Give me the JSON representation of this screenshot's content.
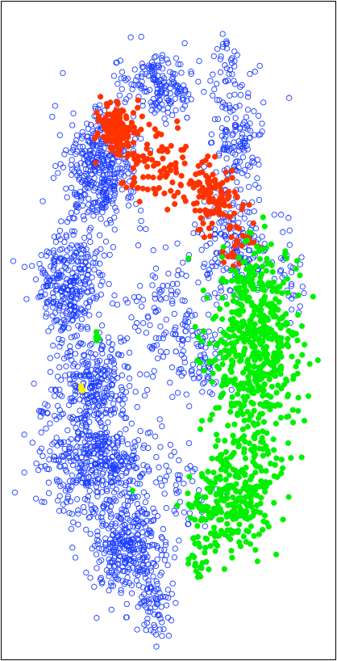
{
  "chart_data": {
    "type": "scatter",
    "title": "",
    "xlabel": "",
    "ylabel": "",
    "xlim": [
      0,
      100
    ],
    "ylim": [
      0,
      100
    ],
    "grid": false,
    "legend": "none",
    "series": [
      {
        "marker": "hollow-circle",
        "color": "#1a3cff",
        "clusters": [
          {
            "cx": 48,
            "cy": 87,
            "sx": 6,
            "sy": 2.5,
            "n": 180
          },
          {
            "cx": 29,
            "cy": 75,
            "sx": 5,
            "sy": 4,
            "n": 380
          },
          {
            "cx": 20,
            "cy": 57,
            "sx": 5,
            "sy": 4.5,
            "n": 320
          },
          {
            "cx": 28,
            "cy": 42,
            "sx": 5,
            "sy": 3.5,
            "n": 250
          },
          {
            "cx": 28,
            "cy": 30,
            "sx": 8,
            "sy": 4,
            "n": 430
          },
          {
            "cx": 38,
            "cy": 17,
            "sx": 6,
            "sy": 4,
            "n": 330
          },
          {
            "cx": 46,
            "cy": 9,
            "sx": 3,
            "sy": 2.5,
            "n": 70
          },
          {
            "cx": 50,
            "cy": 53,
            "sx": 8,
            "sy": 5,
            "n": 130
          },
          {
            "cx": 70,
            "cy": 62,
            "sx": 5,
            "sy": 4,
            "n": 160
          },
          {
            "cx": 71,
            "cy": 79,
            "sx": 4,
            "sy": 5,
            "n": 150
          },
          {
            "cx": 60,
            "cy": 45,
            "sx": 5,
            "sy": 3,
            "n": 70
          },
          {
            "cx": 55,
            "cy": 26,
            "sx": 4,
            "sy": 3,
            "n": 40
          },
          {
            "cx": 68,
            "cy": 91,
            "sx": 1.5,
            "sy": 2,
            "n": 25
          },
          {
            "cx": 86,
            "cy": 58,
            "sx": 2,
            "sy": 4,
            "n": 30
          },
          {
            "cx": 12,
            "cy": 38,
            "sx": 2,
            "sy": 1,
            "n": 12
          }
        ]
      },
      {
        "marker": "filled-circle",
        "color": "#ff3300",
        "clusters": [
          {
            "cx": 35,
            "cy": 81,
            "sx": 3,
            "sy": 2,
            "n": 130
          },
          {
            "cx": 46,
            "cy": 75,
            "sx": 5,
            "sy": 2.5,
            "n": 90
          },
          {
            "cx": 63,
            "cy": 70,
            "sx": 4,
            "sy": 2.5,
            "n": 110
          },
          {
            "cx": 71,
            "cy": 64,
            "sx": 3,
            "sy": 2,
            "n": 30
          }
        ]
      },
      {
        "marker": "filled-circle",
        "color": "#00f000",
        "clusters": [
          {
            "cx": 75,
            "cy": 46,
            "sx": 7,
            "sy": 6,
            "n": 430
          },
          {
            "cx": 76,
            "cy": 56,
            "sx": 5,
            "sy": 4,
            "n": 130
          },
          {
            "cx": 68,
            "cy": 23,
            "sx": 6,
            "sy": 3.5,
            "n": 220
          },
          {
            "cx": 75,
            "cy": 30,
            "sx": 5,
            "sy": 3,
            "n": 80
          },
          {
            "cx": 59,
            "cy": 15,
            "sx": 1.5,
            "sy": 1.5,
            "n": 20
          },
          {
            "cx": 29,
            "cy": 49,
            "sx": 0.6,
            "sy": 0.6,
            "n": 5
          }
        ]
      },
      {
        "marker": "filled-circle",
        "color": "#ffee00",
        "clusters": [
          {
            "cx": 24,
            "cy": 41,
            "sx": 0.4,
            "sy": 0.5,
            "n": 4
          }
        ]
      }
    ]
  }
}
